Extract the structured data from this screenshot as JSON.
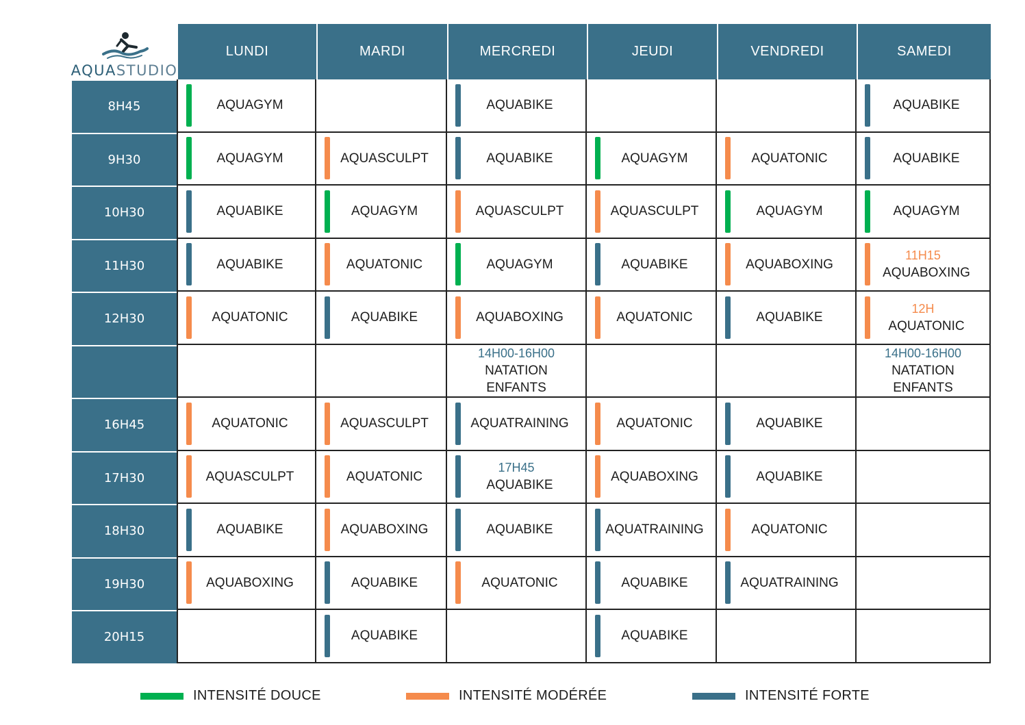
{
  "brand": {
    "part1": "AQUA",
    "part2": "STUDIO"
  },
  "colors": {
    "douce": "#00b050",
    "moderee": "#f58b4c",
    "forte": "#3a7089"
  },
  "days": [
    "LUNDI",
    "MARDI",
    "MERCREDI",
    "JEUDI",
    "VENDREDI",
    "SAMEDI"
  ],
  "rows": [
    {
      "time": "8H45",
      "cells": [
        {
          "name": "AQUAGYM",
          "intensity": "douce"
        },
        null,
        {
          "name": "AQUABIKE",
          "intensity": "forte"
        },
        null,
        null,
        {
          "name": "AQUABIKE",
          "intensity": "forte"
        }
      ]
    },
    {
      "time": "9H30",
      "cells": [
        {
          "name": "AQUAGYM",
          "intensity": "douce"
        },
        {
          "name": "AQUASCULPT",
          "intensity": "moderee"
        },
        {
          "name": "AQUABIKE",
          "intensity": "forte"
        },
        {
          "name": "AQUAGYM",
          "intensity": "douce"
        },
        {
          "name": "AQUATONIC",
          "intensity": "moderee"
        },
        {
          "name": "AQUABIKE",
          "intensity": "forte"
        }
      ]
    },
    {
      "time": "10H30",
      "cells": [
        {
          "name": "AQUABIKE",
          "intensity": "forte"
        },
        {
          "name": "AQUAGYM",
          "intensity": "douce"
        },
        {
          "name": "AQUASCULPT",
          "intensity": "moderee"
        },
        {
          "name": "AQUASCULPT",
          "intensity": "moderee"
        },
        {
          "name": "AQUAGYM",
          "intensity": "douce"
        },
        {
          "name": "AQUAGYM",
          "intensity": "douce"
        }
      ]
    },
    {
      "time": "11H30",
      "cells": [
        {
          "name": "AQUABIKE",
          "intensity": "forte"
        },
        {
          "name": "AQUATONIC",
          "intensity": "moderee"
        },
        {
          "name": "AQUAGYM",
          "intensity": "douce"
        },
        {
          "name": "AQUABIKE",
          "intensity": "forte"
        },
        {
          "name": "AQUABOXING",
          "intensity": "moderee"
        },
        {
          "name": "AQUABOXING",
          "intensity": "moderee",
          "note": "11H15",
          "note_color": "orange"
        }
      ]
    },
    {
      "time": "12H30",
      "cells": [
        {
          "name": "AQUATONIC",
          "intensity": "moderee"
        },
        {
          "name": "AQUABIKE",
          "intensity": "forte"
        },
        {
          "name": "AQUABOXING",
          "intensity": "moderee"
        },
        {
          "name": "AQUATONIC",
          "intensity": "moderee"
        },
        {
          "name": "AQUABIKE",
          "intensity": "forte"
        },
        {
          "name": "AQUATONIC",
          "intensity": "moderee",
          "note": "12H",
          "note_color": "orange"
        }
      ]
    },
    {
      "time": "",
      "cells": [
        null,
        null,
        {
          "name": "NATATION ENFANTS",
          "intensity": null,
          "note": "14H00-16H00",
          "note_color": "blue"
        },
        null,
        null,
        {
          "name": "NATATION ENFANTS",
          "intensity": null,
          "note": "14H00-16H00",
          "note_color": "blue"
        }
      ]
    },
    {
      "time": "16H45",
      "cells": [
        {
          "name": "AQUATONIC",
          "intensity": "moderee"
        },
        {
          "name": "AQUASCULPT",
          "intensity": "moderee"
        },
        {
          "name": "AQUATRAINING",
          "intensity": "forte"
        },
        {
          "name": "AQUATONIC",
          "intensity": "moderee"
        },
        {
          "name": "AQUABIKE",
          "intensity": "forte"
        },
        null
      ]
    },
    {
      "time": "17H30",
      "cells": [
        {
          "name": "AQUASCULPT",
          "intensity": "moderee"
        },
        {
          "name": "AQUATONIC",
          "intensity": "moderee"
        },
        {
          "name": "AQUABIKE",
          "intensity": "forte",
          "note": "17H45",
          "note_color": "blue"
        },
        {
          "name": "AQUABOXING",
          "intensity": "moderee"
        },
        {
          "name": "AQUABIKE",
          "intensity": "forte"
        },
        null
      ]
    },
    {
      "time": "18H30",
      "cells": [
        {
          "name": "AQUABIKE",
          "intensity": "forte"
        },
        {
          "name": "AQUABOXING",
          "intensity": "moderee"
        },
        {
          "name": "AQUABIKE",
          "intensity": "forte"
        },
        {
          "name": "AQUATRAINING",
          "intensity": "forte"
        },
        {
          "name": "AQUATONIC",
          "intensity": "moderee"
        },
        null
      ]
    },
    {
      "time": "19H30",
      "cells": [
        {
          "name": "AQUABOXING",
          "intensity": "moderee"
        },
        {
          "name": "AQUABIKE",
          "intensity": "forte"
        },
        {
          "name": "AQUATONIC",
          "intensity": "moderee"
        },
        {
          "name": "AQUABIKE",
          "intensity": "forte"
        },
        {
          "name": "AQUATRAINING",
          "intensity": "forte"
        },
        null
      ]
    },
    {
      "time": "20H15",
      "cells": [
        null,
        {
          "name": "AQUABIKE",
          "intensity": "forte"
        },
        null,
        {
          "name": "AQUABIKE",
          "intensity": "forte"
        },
        null,
        null
      ]
    }
  ],
  "legend": [
    {
      "label": "INTENSITÉ DOUCE",
      "intensity": "douce"
    },
    {
      "label": "INTENSITÉ MODÉRÉE",
      "intensity": "moderee"
    },
    {
      "label": "INTENSITÉ FORTE",
      "intensity": "forte"
    }
  ]
}
